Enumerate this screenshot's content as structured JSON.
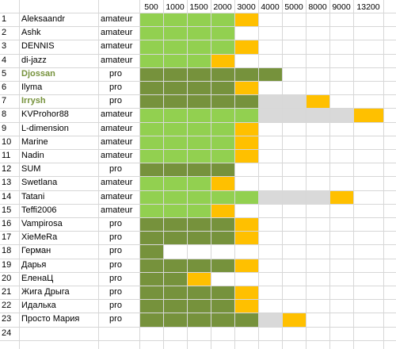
{
  "colors": {
    "light_green": "#92d050",
    "dark_green": "#76923c",
    "yellow": "#ffc000",
    "gray": "#d9d9d9",
    "olive_name": "#76923c"
  },
  "columns": [
    "500",
    "1000",
    "1500",
    "2000",
    "3000",
    "4000",
    "5000",
    "8000",
    "9000",
    "13200"
  ],
  "rows": [
    {
      "num": "1",
      "name": "Aleksaandr",
      "type": "amateur",
      "bold": false,
      "cells": [
        "L",
        "L",
        "L",
        "L",
        "Y",
        "",
        "",
        "",
        "",
        ""
      ]
    },
    {
      "num": "2",
      "name": "Ashk",
      "type": "amateur",
      "bold": false,
      "cells": [
        "L",
        "L",
        "L",
        "L",
        "",
        "",
        "",
        "",
        "",
        ""
      ]
    },
    {
      "num": "3",
      "name": "DENNIS",
      "type": "amateur",
      "bold": false,
      "cells": [
        "L",
        "L",
        "L",
        "L",
        "Y",
        "",
        "",
        "",
        "",
        ""
      ]
    },
    {
      "num": "4",
      "name": "di-jazz",
      "type": "amateur",
      "bold": false,
      "cells": [
        "L",
        "L",
        "L",
        "Y",
        "",
        "",
        "",
        "",
        "",
        ""
      ]
    },
    {
      "num": "5",
      "name": "Djossan",
      "type": "pro",
      "bold": true,
      "cells": [
        "D",
        "D",
        "D",
        "D",
        "D",
        "D",
        "",
        "",
        "",
        ""
      ]
    },
    {
      "num": "6",
      "name": "Ilyma",
      "type": "pro",
      "bold": false,
      "cells": [
        "D",
        "D",
        "D",
        "D",
        "Y",
        "",
        "",
        "",
        "",
        ""
      ]
    },
    {
      "num": "7",
      "name": "Irrysh",
      "type": "pro",
      "bold": true,
      "cells": [
        "D",
        "D",
        "D",
        "D",
        "D",
        "G",
        "G",
        "Y",
        "",
        ""
      ]
    },
    {
      "num": "8",
      "name": "KVProhor88",
      "type": "amateur",
      "bold": false,
      "cells": [
        "L",
        "L",
        "L",
        "L",
        "L",
        "G",
        "G",
        "G",
        "G",
        "Y"
      ]
    },
    {
      "num": "9",
      "name": "L-dimension",
      "type": "amateur",
      "bold": false,
      "cells": [
        "L",
        "L",
        "L",
        "L",
        "Y",
        "",
        "",
        "",
        "",
        ""
      ]
    },
    {
      "num": "10",
      "name": "Marine",
      "type": "amateur",
      "bold": false,
      "cells": [
        "L",
        "L",
        "L",
        "L",
        "Y",
        "",
        "",
        "",
        "",
        ""
      ]
    },
    {
      "num": "11",
      "name": "Nadin",
      "type": "amateur",
      "bold": false,
      "cells": [
        "L",
        "L",
        "L",
        "L",
        "Y",
        "",
        "",
        "",
        "",
        ""
      ]
    },
    {
      "num": "12",
      "name": "SUM",
      "type": "pro",
      "bold": false,
      "cells": [
        "D",
        "D",
        "D",
        "D",
        "",
        "",
        "",
        "",
        "",
        ""
      ]
    },
    {
      "num": "13",
      "name": "Swetlana",
      "type": "amateur",
      "bold": false,
      "cells": [
        "L",
        "L",
        "L",
        "Y",
        "",
        "",
        "",
        "",
        "",
        ""
      ]
    },
    {
      "num": "14",
      "name": "Tatani",
      "type": "amateur",
      "bold": false,
      "cells": [
        "L",
        "L",
        "L",
        "L",
        "L",
        "G",
        "G",
        "G",
        "Y",
        ""
      ]
    },
    {
      "num": "15",
      "name": "Teffi2006",
      "type": "amateur",
      "bold": false,
      "cells": [
        "L",
        "L",
        "L",
        "Y",
        "",
        "",
        "",
        "",
        "",
        ""
      ]
    },
    {
      "num": "16",
      "name": "Vampirosa",
      "type": "pro",
      "bold": false,
      "cells": [
        "D",
        "D",
        "D",
        "D",
        "Y",
        "",
        "",
        "",
        "",
        ""
      ]
    },
    {
      "num": "17",
      "name": "XieMeRa",
      "type": "pro",
      "bold": false,
      "cells": [
        "D",
        "D",
        "D",
        "D",
        "Y",
        "",
        "",
        "",
        "",
        ""
      ]
    },
    {
      "num": "18",
      "name": "Герман",
      "type": "pro",
      "bold": false,
      "cells": [
        "D",
        "",
        "",
        "",
        "",
        "",
        "",
        "",
        "",
        ""
      ]
    },
    {
      "num": "19",
      "name": "Дарья",
      "type": "pro",
      "bold": false,
      "cells": [
        "D",
        "D",
        "D",
        "D",
        "Y",
        "",
        "",
        "",
        "",
        ""
      ]
    },
    {
      "num": "20",
      "name": "ЕленаЦ",
      "type": "pro",
      "bold": false,
      "cells": [
        "D",
        "D",
        "Y",
        "",
        "",
        "",
        "",
        "",
        "",
        ""
      ]
    },
    {
      "num": "21",
      "name": "Жига Дрыга",
      "type": "pro",
      "bold": false,
      "cells": [
        "D",
        "D",
        "D",
        "D",
        "Y",
        "",
        "",
        "",
        "",
        ""
      ]
    },
    {
      "num": "22",
      "name": "Идалька",
      "type": "pro",
      "bold": false,
      "cells": [
        "D",
        "D",
        "D",
        "D",
        "Y",
        "",
        "",
        "",
        "",
        ""
      ]
    },
    {
      "num": "23",
      "name": "Просто Мария",
      "type": "pro",
      "bold": false,
      "cells": [
        "D",
        "D",
        "D",
        "D",
        "D",
        "G",
        "Y",
        "",
        "",
        ""
      ]
    },
    {
      "num": "24",
      "name": "",
      "type": "",
      "bold": false,
      "cells": [
        "",
        "",
        "",
        "",
        "",
        "",
        "",
        "",
        "",
        ""
      ]
    }
  ]
}
